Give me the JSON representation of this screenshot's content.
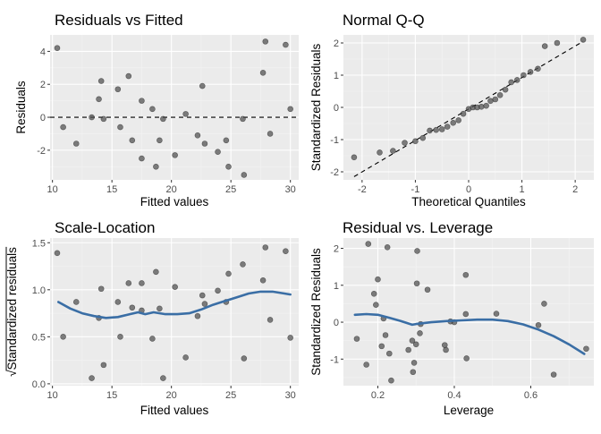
{
  "colors": {
    "panel_bg": "#ebebeb",
    "grid_major": "#ffffff",
    "grid_minor": "#f4f4f4",
    "point_fill": "#4d4d4d",
    "smooth_line": "#3a6ea5",
    "ref_line": "#000000",
    "tick_text": "#4d4d4d"
  },
  "chart_data": [
    {
      "id": "p1",
      "type": "scatter",
      "title": "Residuals vs Fitted",
      "xlabel": "Fitted values",
      "ylabel": "Residuals",
      "xlim": [
        9.8,
        30.7
      ],
      "ylim": [
        -3.8,
        5.0
      ],
      "xticks": [
        10,
        15,
        20,
        25,
        30
      ],
      "yticks": [
        -2,
        0,
        2,
        4
      ],
      "xticklabels": [
        "10",
        "15",
        "20",
        "25",
        "30"
      ],
      "yticklabels": [
        "-2",
        "0",
        "2",
        "4"
      ],
      "xminor": [
        12.5,
        17.5,
        22.5,
        27.5
      ],
      "yminor": [
        -3,
        -1,
        1,
        3
      ],
      "hline": 0,
      "points": [
        [
          10.4,
          4.2
        ],
        [
          10.9,
          -0.6
        ],
        [
          12.0,
          -1.6
        ],
        [
          13.3,
          0.0
        ],
        [
          13.9,
          1.1
        ],
        [
          14.1,
          2.2
        ],
        [
          14.3,
          -0.1
        ],
        [
          15.5,
          1.7
        ],
        [
          15.7,
          -0.6
        ],
        [
          16.4,
          2.5
        ],
        [
          16.7,
          -1.4
        ],
        [
          17.5,
          1.0
        ],
        [
          17.5,
          -2.5
        ],
        [
          18.4,
          0.5
        ],
        [
          18.7,
          -3.0
        ],
        [
          19.0,
          -1.4
        ],
        [
          19.3,
          -0.1
        ],
        [
          20.3,
          -2.3
        ],
        [
          21.2,
          0.2
        ],
        [
          22.2,
          -1.1
        ],
        [
          22.6,
          1.9
        ],
        [
          22.8,
          -1.6
        ],
        [
          23.9,
          -2.1
        ],
        [
          24.6,
          -1.4
        ],
        [
          24.8,
          -3.0
        ],
        [
          26.0,
          -0.1
        ],
        [
          26.1,
          -3.5
        ],
        [
          27.7,
          2.7
        ],
        [
          27.9,
          4.6
        ],
        [
          28.3,
          -1.0
        ],
        [
          29.6,
          4.4
        ],
        [
          30.0,
          0.5
        ]
      ]
    },
    {
      "id": "p2",
      "type": "scatter",
      "title": "Normal Q-Q",
      "xlabel": "Theoretical Quantiles",
      "ylabel": "Standardized Residuals",
      "xlim": [
        -2.35,
        2.35
      ],
      "ylim": [
        -2.25,
        2.25
      ],
      "xticks": [
        -2,
        -1,
        0,
        1,
        2
      ],
      "yticks": [
        -2,
        -1,
        0,
        1,
        2
      ],
      "xticklabels": [
        "-2",
        "-1",
        "0",
        "1",
        "2"
      ],
      "yticklabels": [
        "-2",
        "-1",
        "0",
        "1",
        "2"
      ],
      "xminor": [
        -1.5,
        -0.5,
        0.5,
        1.5
      ],
      "yminor": [
        -1.5,
        -0.5,
        0.5,
        1.5
      ],
      "refline": [
        [
          -2.15,
          -2.15
        ],
        [
          2.15,
          2.05
        ]
      ],
      "points": [
        [
          -2.15,
          -1.55
        ],
        [
          -1.67,
          -1.4
        ],
        [
          -1.42,
          -1.35
        ],
        [
          -1.2,
          -1.1
        ],
        [
          -1.0,
          -1.05
        ],
        [
          -0.86,
          -0.95
        ],
        [
          -0.73,
          -0.72
        ],
        [
          -0.61,
          -0.7
        ],
        [
          -0.5,
          -0.68
        ],
        [
          -0.4,
          -0.6
        ],
        [
          -0.29,
          -0.48
        ],
        [
          -0.19,
          -0.4
        ],
        [
          -0.1,
          -0.2
        ],
        [
          0.0,
          -0.05
        ],
        [
          0.08,
          0.0
        ],
        [
          0.16,
          0.0
        ],
        [
          0.24,
          0.02
        ],
        [
          0.33,
          0.05
        ],
        [
          0.41,
          0.2
        ],
        [
          0.5,
          0.25
        ],
        [
          0.59,
          0.38
        ],
        [
          0.69,
          0.55
        ],
        [
          0.8,
          0.78
        ],
        [
          0.91,
          0.85
        ],
        [
          1.03,
          1.0
        ],
        [
          1.16,
          1.1
        ],
        [
          1.3,
          1.2
        ],
        [
          1.43,
          1.9
        ],
        [
          1.66,
          2.0
        ],
        [
          2.15,
          2.1
        ]
      ]
    },
    {
      "id": "p3",
      "type": "scatter",
      "title": "Scale-Location",
      "xlabel": "Fitted values",
      "ylabel": "Standardized residuals",
      "ylabel_prefix": "√",
      "xlim": [
        9.8,
        30.7
      ],
      "ylim": [
        -0.02,
        1.55
      ],
      "xticks": [
        10,
        15,
        20,
        25,
        30
      ],
      "yticks": [
        0.0,
        0.5,
        1.0,
        1.5
      ],
      "xticklabels": [
        "10",
        "15",
        "20",
        "25",
        "30"
      ],
      "yticklabels": [
        "0.0",
        "0.5",
        "1.0",
        "1.5"
      ],
      "xminor": [
        12.5,
        17.5,
        22.5,
        27.5
      ],
      "yminor": [
        0.25,
        0.75,
        1.25
      ],
      "smooth": [
        [
          10.5,
          0.87
        ],
        [
          11.5,
          0.8
        ],
        [
          12.5,
          0.75
        ],
        [
          13.5,
          0.72
        ],
        [
          14.5,
          0.7
        ],
        [
          15.5,
          0.71
        ],
        [
          16.5,
          0.74
        ],
        [
          17.2,
          0.76
        ],
        [
          17.8,
          0.74
        ],
        [
          18.5,
          0.76
        ],
        [
          19.5,
          0.74
        ],
        [
          20.5,
          0.74
        ],
        [
          21.5,
          0.75
        ],
        [
          22.5,
          0.79
        ],
        [
          23.5,
          0.84
        ],
        [
          24.5,
          0.88
        ],
        [
          25.5,
          0.92
        ],
        [
          26.5,
          0.96
        ],
        [
          27.5,
          0.98
        ],
        [
          28.5,
          0.98
        ],
        [
          29.5,
          0.96
        ],
        [
          30.0,
          0.95
        ]
      ],
      "points": [
        [
          10.4,
          1.39
        ],
        [
          10.9,
          0.5
        ],
        [
          12.0,
          0.87
        ],
        [
          13.3,
          0.06
        ],
        [
          13.9,
          0.7
        ],
        [
          14.1,
          1.01
        ],
        [
          14.3,
          0.2
        ],
        [
          15.5,
          0.87
        ],
        [
          15.7,
          0.5
        ],
        [
          16.4,
          1.07
        ],
        [
          16.7,
          0.81
        ],
        [
          17.5,
          0.78
        ],
        [
          17.5,
          1.07
        ],
        [
          18.4,
          0.48
        ],
        [
          18.7,
          1.19
        ],
        [
          19.0,
          0.8
        ],
        [
          19.3,
          0.06
        ],
        [
          20.3,
          1.03
        ],
        [
          21.2,
          0.28
        ],
        [
          22.2,
          0.72
        ],
        [
          22.6,
          0.94
        ],
        [
          22.8,
          0.85
        ],
        [
          23.9,
          0.99
        ],
        [
          24.6,
          0.87
        ],
        [
          24.8,
          1.17
        ],
        [
          26.0,
          1.27
        ],
        [
          26.1,
          0.27
        ],
        [
          27.7,
          1.1
        ],
        [
          27.9,
          1.45
        ],
        [
          28.3,
          0.68
        ],
        [
          29.6,
          1.41
        ],
        [
          30.0,
          0.49
        ]
      ]
    },
    {
      "id": "p4",
      "type": "scatter",
      "title": "Residual vs. Leverage",
      "xlabel": "Leverage",
      "ylabel": "Standardized Residuals",
      "xlim": [
        0.11,
        0.765
      ],
      "ylim": [
        -1.72,
        2.28
      ],
      "xticks": [
        0.2,
        0.4,
        0.6
      ],
      "yticks": [
        -1,
        0,
        1,
        2
      ],
      "xticklabels": [
        "0.2",
        "0.4",
        "0.6"
      ],
      "yticklabels": [
        "-1",
        "0",
        "1",
        "2"
      ],
      "xminor": [
        0.3,
        0.5,
        0.7
      ],
      "yminor": [
        -1.5,
        -0.5,
        0.5,
        1.5
      ],
      "smooth": [
        [
          0.14,
          0.2
        ],
        [
          0.17,
          0.22
        ],
        [
          0.2,
          0.2
        ],
        [
          0.23,
          0.12
        ],
        [
          0.26,
          0.03
        ],
        [
          0.29,
          -0.07
        ],
        [
          0.3,
          -0.05
        ],
        [
          0.34,
          0.0
        ],
        [
          0.38,
          0.03
        ],
        [
          0.42,
          0.05
        ],
        [
          0.46,
          0.07
        ],
        [
          0.5,
          0.07
        ],
        [
          0.54,
          0.03
        ],
        [
          0.58,
          -0.06
        ],
        [
          0.62,
          -0.2
        ],
        [
          0.66,
          -0.38
        ],
        [
          0.7,
          -0.6
        ],
        [
          0.74,
          -0.86
        ]
      ],
      "points": [
        [
          0.145,
          -0.45
        ],
        [
          0.17,
          -1.15
        ],
        [
          0.175,
          2.12
        ],
        [
          0.19,
          0.77
        ],
        [
          0.195,
          0.47
        ],
        [
          0.2,
          1.16
        ],
        [
          0.21,
          -0.65
        ],
        [
          0.215,
          0.1
        ],
        [
          0.22,
          -0.35
        ],
        [
          0.225,
          2.03
        ],
        [
          0.23,
          -0.85
        ],
        [
          0.235,
          -1.58
        ],
        [
          0.28,
          -0.75
        ],
        [
          0.29,
          -0.5
        ],
        [
          0.292,
          -1.35
        ],
        [
          0.295,
          -1.1
        ],
        [
          0.3,
          -0.6
        ],
        [
          0.302,
          1.05
        ],
        [
          0.303,
          1.93
        ],
        [
          0.31,
          -0.3
        ],
        [
          0.312,
          -0.05
        ],
        [
          0.33,
          0.88
        ],
        [
          0.375,
          -0.62
        ],
        [
          0.378,
          -0.75
        ],
        [
          0.39,
          0.02
        ],
        [
          0.4,
          0.0
        ],
        [
          0.43,
          0.22
        ],
        [
          0.43,
          1.28
        ],
        [
          0.432,
          -0.98
        ],
        [
          0.51,
          0.23
        ],
        [
          0.62,
          -0.08
        ],
        [
          0.635,
          0.5
        ],
        [
          0.66,
          -1.42
        ],
        [
          0.745,
          -0.72
        ]
      ]
    }
  ]
}
